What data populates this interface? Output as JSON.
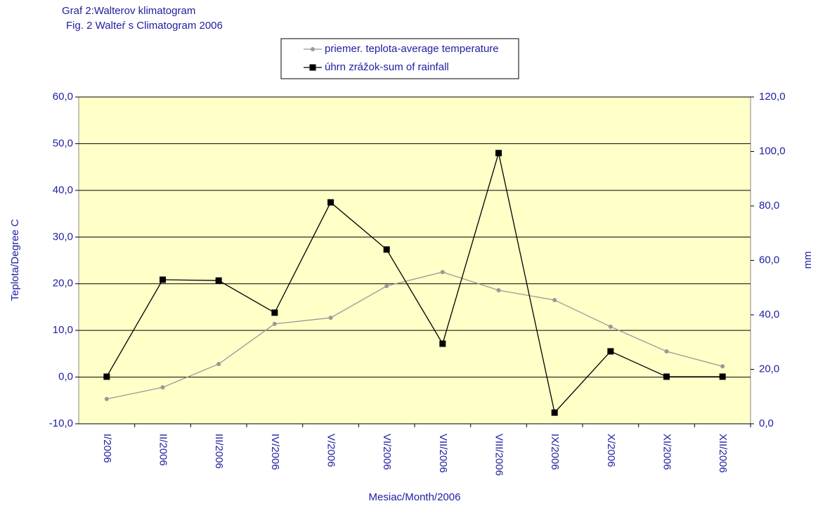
{
  "chart_data": {
    "type": "line",
    "title": "Graf 2:Walterov klimatogram",
    "subtitle": "Fig. 2 Walteŕ s Climatogram 2006",
    "xlabel": "Mesiac/Month/2006",
    "ylabel": "Teplota/Degree C",
    "y2label": "mm",
    "categories": [
      "I/2006",
      "II/2006",
      "III/2006",
      "IV/2006",
      "V/2006",
      "VI/2006",
      "VII/2006",
      "VIII/2006",
      "IX/2006",
      "X/2006",
      "XI/2006",
      "XII/2006"
    ],
    "series": [
      {
        "name": "priemer. teplota-average temperature",
        "color": "#999999",
        "marker": "circle",
        "values": [
          -4.7,
          -2.2,
          2.8,
          11.4,
          12.7,
          19.5,
          22.5,
          18.6,
          16.5,
          10.8,
          5.5,
          2.3
        ]
      },
      {
        "name": "úhrn zrážok-sum of rainfall",
        "color": "#000000",
        "marker": "square",
        "axis": "y2",
        "values": [
          17.3,
          52.9,
          52.6,
          40.8,
          81.3,
          64.0,
          29.4,
          99.4,
          4.1,
          26.6,
          17.3,
          17.3
        ]
      }
    ],
    "ylim": [
      -10,
      60
    ],
    "yticks": [
      {
        "value": -10,
        "label": "-10,0"
      },
      {
        "value": 0,
        "label": "0,0"
      },
      {
        "value": 10,
        "label": "10,0"
      },
      {
        "value": 20,
        "label": "20,0"
      },
      {
        "value": 30,
        "label": "30,0"
      },
      {
        "value": 40,
        "label": "40,0"
      },
      {
        "value": 50,
        "label": "50,0"
      },
      {
        "value": 60,
        "label": "60,0"
      }
    ],
    "y2lim": [
      0,
      120
    ],
    "y2ticks": [
      {
        "value": 0,
        "label": "0,0"
      },
      {
        "value": 20,
        "label": "20,0"
      },
      {
        "value": 40,
        "label": "40,0"
      },
      {
        "value": 60,
        "label": "60,0"
      },
      {
        "value": 80,
        "label": "80,0"
      },
      {
        "value": 100,
        "label": "100,0"
      },
      {
        "value": 120,
        "label": "120,0"
      }
    ],
    "grid": true,
    "legend": "top",
    "plot_background": "#ffffc8"
  }
}
